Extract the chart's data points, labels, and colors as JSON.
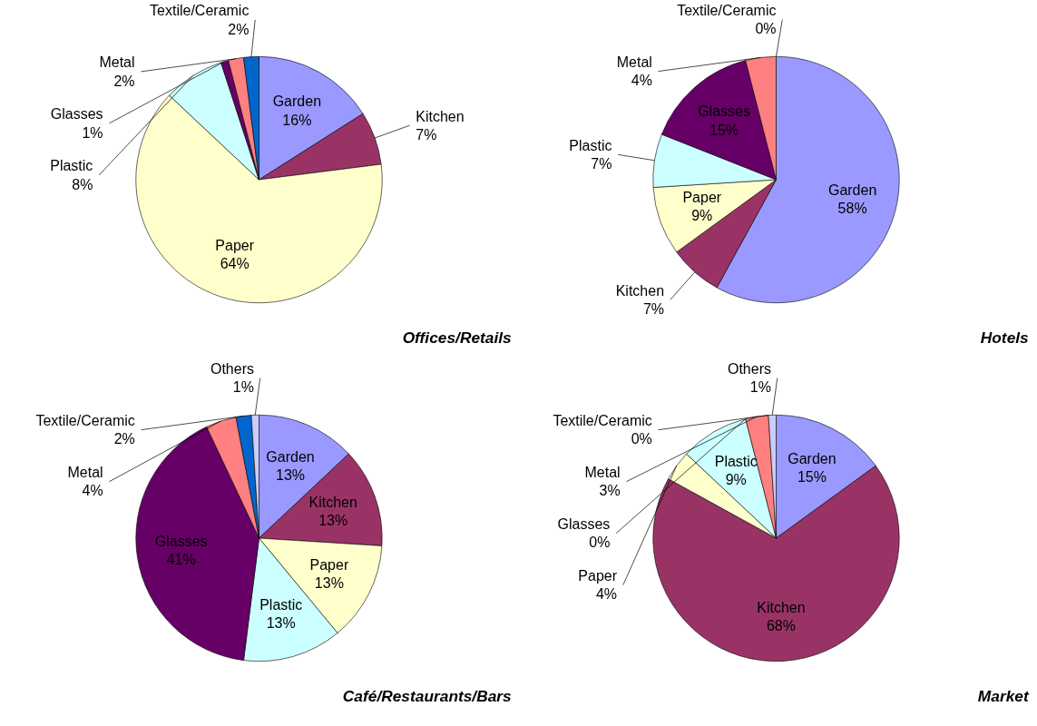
{
  "chart_data": [
    {
      "type": "pie",
      "title": "Offices/Retails",
      "categories": [
        "Garden",
        "Kitchen",
        "Paper",
        "Plastic",
        "Glasses",
        "Metal",
        "Textile/Ceramic"
      ],
      "values": [
        16,
        7,
        64,
        8,
        1,
        2,
        2
      ],
      "value_labels": [
        "16%",
        "7%",
        "64%",
        "8%",
        "1%",
        "2%",
        "2%"
      ],
      "colors": [
        "#9999ff",
        "#993366",
        "#ffffcc",
        "#ccffff",
        "#660066",
        "#ff8080",
        "#0066cc"
      ]
    },
    {
      "type": "pie",
      "title": "Hotels",
      "categories": [
        "Garden",
        "Kitchen",
        "Paper",
        "Plastic",
        "Glasses",
        "Metal",
        "Textile/Ceramic"
      ],
      "values": [
        58,
        7,
        9,
        7,
        15,
        4,
        0
      ],
      "value_labels": [
        "58%",
        "7%",
        "9%",
        "7%",
        "15%",
        "4%",
        "0%"
      ],
      "colors": [
        "#9999ff",
        "#993366",
        "#ffffcc",
        "#ccffff",
        "#660066",
        "#ff8080",
        "#0066cc"
      ]
    },
    {
      "type": "pie",
      "title": "Café/Restaurants/Bars",
      "categories": [
        "Garden",
        "Kitchen",
        "Paper",
        "Plastic",
        "Glasses",
        "Metal",
        "Textile/Ceramic",
        "Others"
      ],
      "values": [
        13,
        13,
        13,
        13,
        41,
        4,
        2,
        1
      ],
      "value_labels": [
        "13%",
        "13%",
        "13%",
        "13%",
        "41%",
        "4%",
        "2%",
        "1%"
      ],
      "colors": [
        "#9999ff",
        "#993366",
        "#ffffcc",
        "#ccffff",
        "#660066",
        "#ff8080",
        "#0066cc",
        "#ccccff"
      ]
    },
    {
      "type": "pie",
      "title": "Market",
      "categories": [
        "Garden",
        "Kitchen",
        "Paper",
        "Plastic",
        "Glasses",
        "Metal",
        "Textile/Ceramic",
        "Others"
      ],
      "values": [
        15,
        68,
        4,
        9,
        0,
        3,
        0,
        1
      ],
      "value_labels": [
        "15%",
        "68%",
        "4%",
        "9%",
        "0%",
        "3%",
        "0%",
        "1%"
      ],
      "colors": [
        "#9999ff",
        "#993366",
        "#ffffcc",
        "#ccffff",
        "#660066",
        "#ff8080",
        "#0066cc",
        "#ccccff"
      ]
    }
  ]
}
